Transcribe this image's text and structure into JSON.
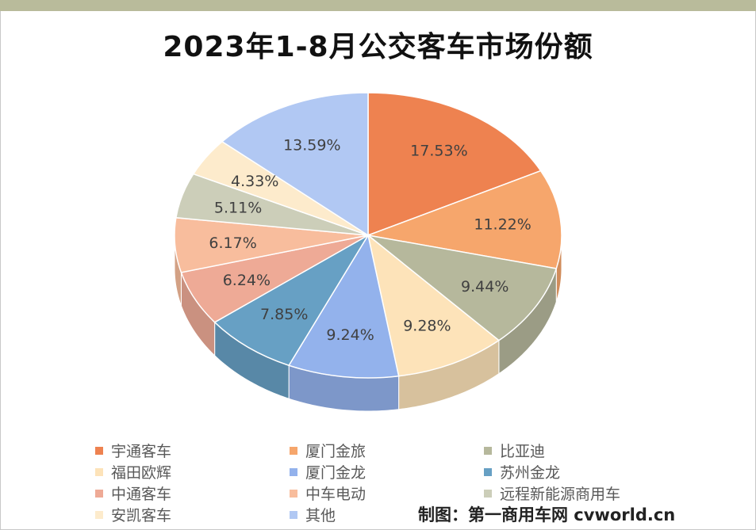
{
  "title": "2023年1-8月公交客车市场份额",
  "credit": "制图：第一商用车网 cvworld.cn",
  "chart_data": {
    "type": "pie",
    "title": "2023年1-8月公交客车市场份额",
    "legend_position": "bottom",
    "slices": [
      {
        "label": "宇通客车",
        "value": 17.53,
        "display": "17.53%",
        "color": "#ee8250"
      },
      {
        "label": "厦门金旅",
        "value": 11.22,
        "display": "11.22%",
        "color": "#f6a66c"
      },
      {
        "label": "比亚迪",
        "value": 9.44,
        "display": "9.44%",
        "color": "#b6b89c"
      },
      {
        "label": "福田欧辉",
        "value": 9.28,
        "display": "9.28%",
        "color": "#fde3b9"
      },
      {
        "label": "厦门金龙",
        "value": 9.24,
        "display": "9.24%",
        "color": "#93b2ec"
      },
      {
        "label": "苏州金龙",
        "value": 7.85,
        "display": "7.85%",
        "color": "#67a0c4"
      },
      {
        "label": "中通客车",
        "value": 6.24,
        "display": "6.24%",
        "color": "#eeaa96"
      },
      {
        "label": "中车电动",
        "value": 6.17,
        "display": "6.17%",
        "color": "#f8bd9d"
      },
      {
        "label": "远程新能源商用车",
        "value": 5.11,
        "display": "5.11%",
        "color": "#ccceb9"
      },
      {
        "label": "安凯客车",
        "value": 4.33,
        "display": "4.33%",
        "color": "#fdebcc"
      },
      {
        "label": "其他",
        "value": 13.59,
        "display": "13.59%",
        "color": "#b1c8f3"
      }
    ]
  }
}
